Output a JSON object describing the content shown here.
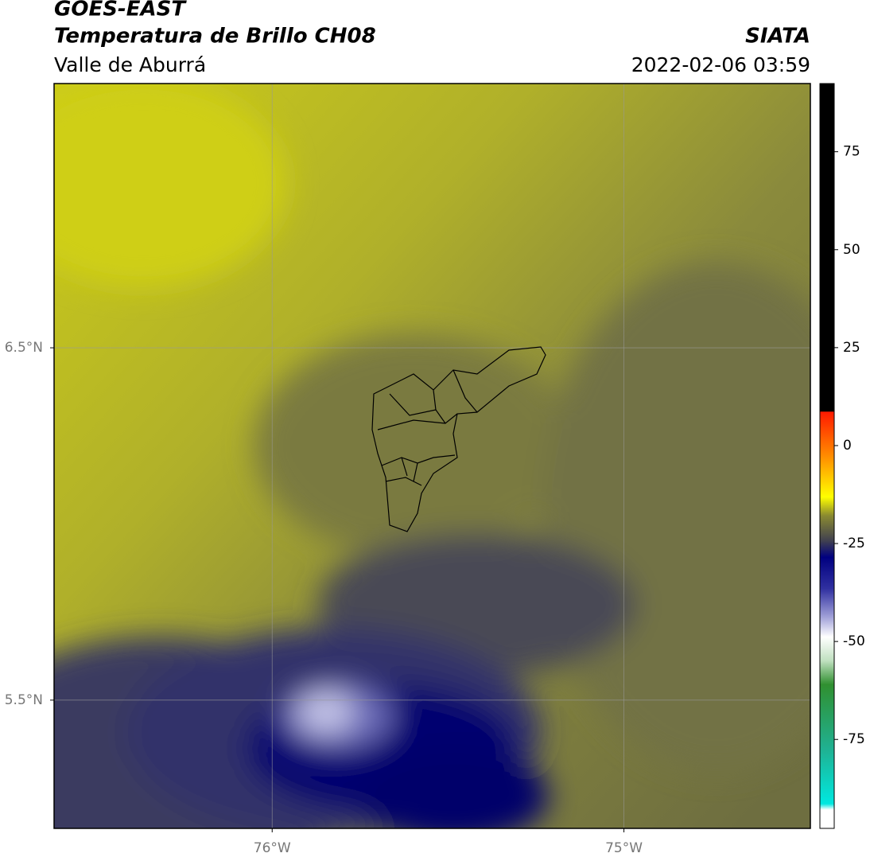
{
  "header": {
    "title": "GOES-EAST",
    "subtitle": "Temperatura de Brillo CH08",
    "region": "Valle de Aburrá",
    "source": "SIATA",
    "datetime": "2022-02-06 03:59"
  },
  "map": {
    "xlim": [
      -76.62,
      -74.47
    ],
    "ylim": [
      5.136,
      7.25
    ],
    "xticks": [
      {
        "value": -76,
        "label": "76°W"
      },
      {
        "value": -75,
        "label": "75°W"
      }
    ],
    "yticks": [
      {
        "value": 6.5,
        "label": "6.5°N"
      },
      {
        "value": 5.5,
        "label": "5.5°N"
      }
    ],
    "grid": true
  },
  "colorbar": {
    "lim": [
      -97.7,
      92.4
    ],
    "ticks": [
      -75,
      -50,
      -25,
      0,
      25,
      50,
      75
    ]
  }
}
